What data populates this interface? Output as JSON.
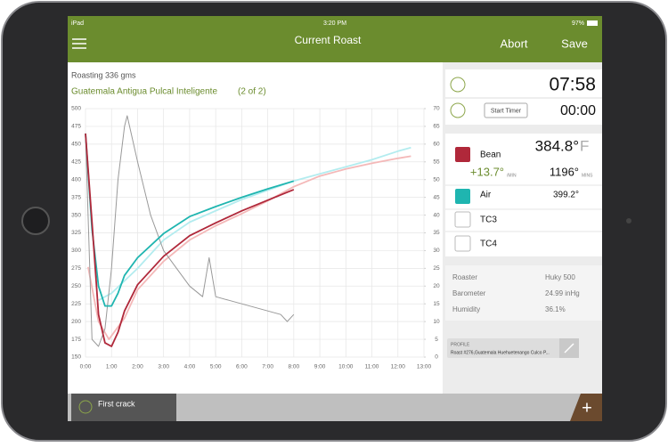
{
  "status": {
    "carrier": "iPad",
    "time": "3:20 PM",
    "battery": "97%"
  },
  "header": {
    "title": "Current Roast",
    "abort": "Abort",
    "save": "Save"
  },
  "roast": {
    "weight": "Roasting 336 gms",
    "name": "Guatemala Antigua Pulcal Inteligente",
    "batch": "(2 of 2)"
  },
  "chart_data": {
    "type": "line",
    "xlim": [
      0,
      13
    ],
    "xticks": [
      {
        "value": 0,
        "label": "0:00"
      },
      {
        "value": 1,
        "label": "1:00"
      },
      {
        "value": 2,
        "label": "2:00"
      },
      {
        "value": 3,
        "label": "3:00"
      },
      {
        "value": 4,
        "label": "4:00"
      },
      {
        "value": 5,
        "label": "5:00"
      },
      {
        "value": 6,
        "label": "6:00"
      },
      {
        "value": 7,
        "label": "7:00"
      },
      {
        "value": 8,
        "label": "8:00"
      },
      {
        "value": 9,
        "label": "9:00"
      },
      {
        "value": 10,
        "label": "10:00"
      },
      {
        "value": 11,
        "label": "11:00"
      },
      {
        "value": 12,
        "label": "12:00"
      },
      {
        "value": 13,
        "label": "13:00"
      }
    ],
    "ylim": [
      150,
      500
    ],
    "yticks": [
      150,
      175,
      200,
      225,
      250,
      275,
      300,
      325,
      350,
      375,
      400,
      425,
      450,
      475,
      500
    ],
    "y2lim": [
      0,
      70
    ],
    "y2ticks": [
      0,
      5,
      10,
      15,
      20,
      25,
      30,
      35,
      40,
      45,
      50,
      55,
      60,
      65,
      70
    ],
    "grid": true,
    "series": [
      {
        "color": "#f4b8b8",
        "x": [
          0.1,
          0.5,
          0.9,
          1.5,
          2,
          3,
          4,
          5,
          6,
          7,
          8,
          9,
          10,
          11,
          12,
          12.5
        ],
        "values": [
          277,
          200,
          175,
          205,
          245,
          285,
          315,
          335,
          352,
          370,
          390,
          405,
          415,
          423,
          430,
          433
        ]
      },
      {
        "color": "#b3ecef",
        "x": [
          0.5,
          1,
          2,
          3,
          4,
          6,
          8,
          9,
          10,
          11,
          12,
          12.5
        ],
        "values": [
          230,
          240,
          275,
          315,
          340,
          372,
          398,
          408,
          418,
          428,
          440,
          445
        ]
      },
      {
        "color": "#999999",
        "axis": "y2",
        "x": [
          0,
          0.25,
          0.5,
          0.75,
          1,
          1.25,
          1.5,
          1.6,
          2,
          2.5,
          3,
          3.5,
          4,
          4.5,
          4.75,
          5,
          5.5,
          6,
          6.5,
          7,
          7.5,
          7.75,
          8
        ],
        "values": [
          63,
          5,
          3,
          8,
          25,
          50,
          65,
          68,
          55,
          40,
          30,
          25,
          20,
          17,
          28,
          17,
          16,
          15,
          14,
          13,
          12,
          10,
          12
        ]
      },
      {
        "color": "#1fb5b0",
        "x": [
          0,
          0.25,
          0.5,
          0.75,
          1,
          1.25,
          1.5,
          2,
          3,
          4,
          5,
          6,
          7,
          8
        ],
        "values": [
          465,
          330,
          250,
          222,
          222,
          240,
          265,
          290,
          324,
          348,
          362,
          375,
          387,
          398
        ]
      },
      {
        "color": "#b0283a",
        "x": [
          0,
          0.25,
          0.5,
          0.75,
          1,
          1.25,
          1.5,
          2,
          3,
          4,
          5,
          6,
          7,
          8
        ],
        "values": [
          465,
          340,
          210,
          170,
          165,
          185,
          215,
          252,
          292,
          321,
          339,
          356,
          371,
          386
        ]
      }
    ]
  },
  "timers": {
    "elapsed": "07:58",
    "button": "Start Timer",
    "timer": "00:00"
  },
  "probes": {
    "bean": {
      "label": "Bean",
      "temp": "384.8°",
      "unit": "F",
      "ror": "+13.7°",
      "ror_unit": "/MIN",
      "total": "1196°",
      "total_unit": "MINS"
    },
    "air": {
      "label": "Air",
      "temp": "399.2°"
    },
    "tc3": {
      "label": "TC3"
    },
    "tc4": {
      "label": "TC4"
    }
  },
  "info": [
    [
      "Roaster",
      "Huky 500"
    ],
    [
      "Barometer",
      "24.99 inHg"
    ],
    [
      "Humidity",
      "36.1%"
    ]
  ],
  "profile": {
    "label": "PROFILE",
    "name": "Roast #276,Guatemala Huehuetenango Culco P..."
  },
  "footer": {
    "first_crack": "First crack"
  }
}
